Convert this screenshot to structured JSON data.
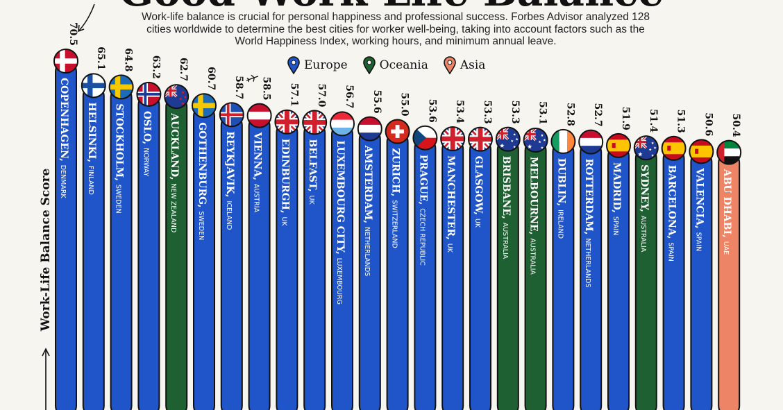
{
  "title_fragment": "Good Work-Life Balance",
  "subtitle": "Work-life balance is crucial for personal happiness and professional success. Forbes Advisor analyzed 128 cities worldwide to determine the best cities for worker well-being, taking into account factors such as the World Happiness Index, working hours, and minimum annual leave.",
  "colors": {
    "Europe": "#1f55c8",
    "Oceania": "#1e6032",
    "Asia": "#ee8466",
    "background": "#f7f5f0"
  },
  "chart_data": {
    "type": "bar",
    "title": "",
    "ylabel": "Work-Life Balance Score",
    "xlabel": "",
    "legend": [
      "Europe",
      "Oceania",
      "Asia"
    ],
    "legend_position": "top-center",
    "grid": false,
    "ylim": [
      0,
      73
    ],
    "categories": [
      {
        "city": "COPENHAGEN",
        "country": "DENMARK",
        "value": 70.5,
        "label": "70.5",
        "region": "Europe",
        "flag": "denmark"
      },
      {
        "city": "HELSINKI",
        "country": "FINLAND",
        "value": 65.1,
        "label": "65.1",
        "region": "Europe",
        "flag": "finland"
      },
      {
        "city": "STOCKHOLM",
        "country": "SWEDEN",
        "value": 64.8,
        "label": "64.8",
        "region": "Europe",
        "flag": "sweden"
      },
      {
        "city": "OSLO",
        "country": "NORWAY",
        "value": 63.2,
        "label": "63.2",
        "region": "Europe",
        "flag": "norway"
      },
      {
        "city": "AUCKLAND",
        "country": "NEW ZEALAND",
        "value": 62.7,
        "label": "62.7",
        "region": "Oceania",
        "flag": "newzealand"
      },
      {
        "city": "GOTHENBURG",
        "country": "SWEDEN",
        "value": 60.7,
        "label": "60.7",
        "region": "Europe",
        "flag": "sweden"
      },
      {
        "city": "REYKJAVIK",
        "country": "ICELAND",
        "value": 58.7,
        "label": "58.7",
        "region": "Europe",
        "flag": "iceland"
      },
      {
        "city": "VIENNA",
        "country": "AUSTRIA",
        "value": 58.5,
        "label": "58.5",
        "region": "Europe",
        "flag": "austria"
      },
      {
        "city": "EDINBURGH",
        "country": "UK",
        "value": 57.1,
        "label": "57.1",
        "region": "Europe",
        "flag": "uk"
      },
      {
        "city": "BELFAST",
        "country": "UK",
        "value": 57.0,
        "label": "57.0",
        "region": "Europe",
        "flag": "uk"
      },
      {
        "city": "LUXEMBOURG CITY",
        "country": "LUXEMBOURG",
        "value": 56.7,
        "label": "56.7",
        "region": "Europe",
        "flag": "luxembourg"
      },
      {
        "city": "AMSTERDAM",
        "country": "NETHERLANDS",
        "value": 55.6,
        "label": "55.6",
        "region": "Europe",
        "flag": "netherlands"
      },
      {
        "city": "ZURICH",
        "country": "SWITZERLAND",
        "value": 55.0,
        "label": "55.0",
        "region": "Europe",
        "flag": "switzerland"
      },
      {
        "city": "PRAGUE",
        "country": "CZECH REPUBLIC",
        "value": 53.6,
        "label": "53.6",
        "region": "Europe",
        "flag": "czech"
      },
      {
        "city": "MANCHESTER",
        "country": "UK",
        "value": 53.4,
        "label": "53.4",
        "region": "Europe",
        "flag": "uk"
      },
      {
        "city": "GLASGOW",
        "country": "UK",
        "value": 53.3,
        "label": "53.3",
        "region": "Europe",
        "flag": "uk"
      },
      {
        "city": "BRISBANE",
        "country": "AUSTRALIA",
        "value": 53.3,
        "label": "53.3",
        "region": "Oceania",
        "flag": "australia"
      },
      {
        "city": "MELBOURNE",
        "country": "AUSTRALIA",
        "value": 53.1,
        "label": "53.1",
        "region": "Oceania",
        "flag": "australia"
      },
      {
        "city": "DUBLIN",
        "country": "IRELAND",
        "value": 52.8,
        "label": "52.8",
        "region": "Europe",
        "flag": "ireland"
      },
      {
        "city": "ROTTERDAM",
        "country": "NETHERLANDS",
        "value": 52.7,
        "label": "52.7",
        "region": "Europe",
        "flag": "netherlands"
      },
      {
        "city": "MADRID",
        "country": "SPAIN",
        "value": 51.9,
        "label": "51.9",
        "region": "Europe",
        "flag": "spain"
      },
      {
        "city": "SYDNEY",
        "country": "AUSTRALIA",
        "value": 51.4,
        "label": "51.4",
        "region": "Oceania",
        "flag": "australia"
      },
      {
        "city": "BARCELONA",
        "country": "SPAIN",
        "value": 51.3,
        "label": "51.3",
        "region": "Europe",
        "flag": "spain"
      },
      {
        "city": "VALENCIA",
        "country": "SPAIN",
        "value": 50.6,
        "label": "50.6",
        "region": "Europe",
        "flag": "spain"
      },
      {
        "city": "ABU DHABI",
        "country": "UAE",
        "value": 50.4,
        "label": "50.4",
        "region": "Asia",
        "flag": "uae"
      }
    ]
  }
}
